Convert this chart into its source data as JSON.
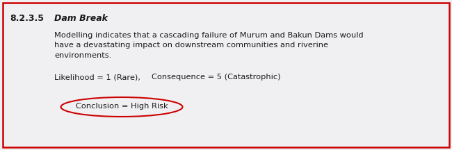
{
  "section_number": "8.2.3.5",
  "section_title": "Dam Break",
  "line1": "Modelling indicates that a cascading failure of Murum and Bakun Dams would",
  "line2": "have a devastating impact on downstream communities and riverine",
  "line3": "environments.",
  "likelihood_text": "Likelihood = 1 (Rare),",
  "consequence_text": "Consequence = 5 (Catastrophic)",
  "conclusion_text": "Conclusion = High Risk",
  "outer_border_color": "#cc0000",
  "ellipse_color": "#cc0000",
  "bg_color": "#f0f0f2",
  "text_color": "#1a1a1a",
  "header_fontsize": 9.0,
  "body_fontsize": 8.2,
  "border_lw": 1.8
}
